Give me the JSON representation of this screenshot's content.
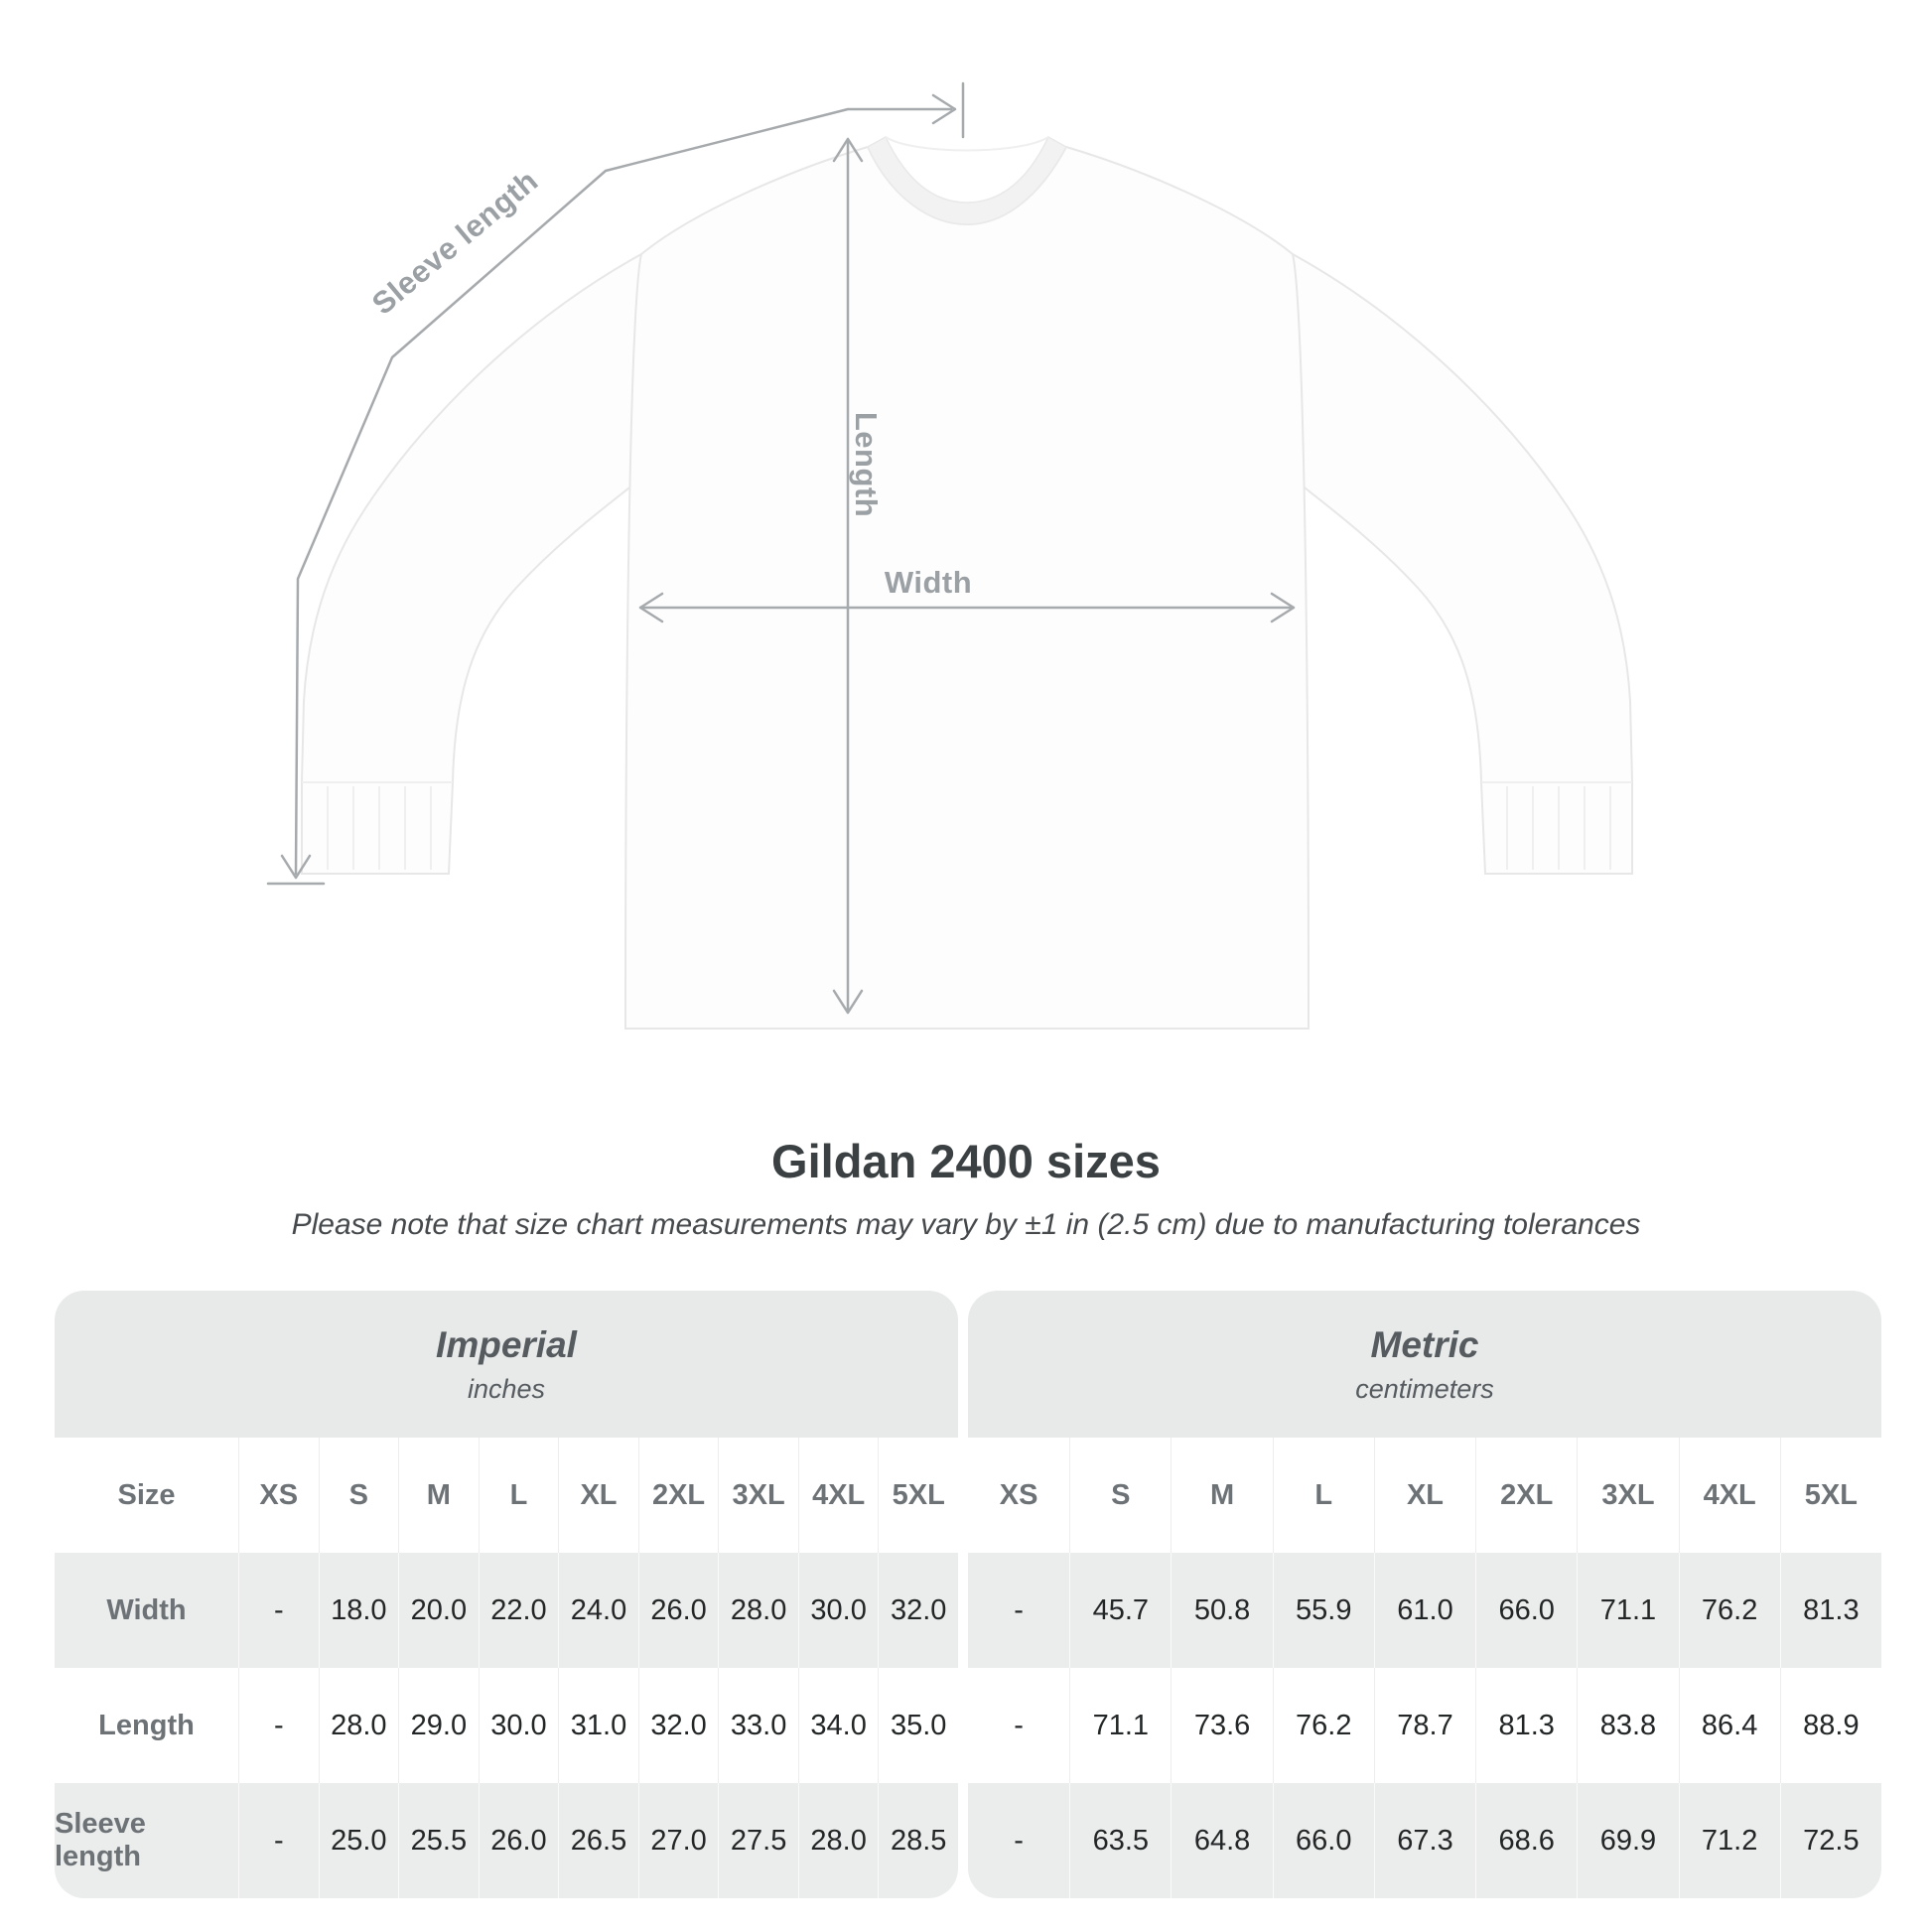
{
  "diagram": {
    "sleeve_length_label": "Sleeve length",
    "length_label": "Length",
    "width_label": "Width"
  },
  "title": "Gildan 2400 sizes",
  "subtitle": "Please note that size chart measurements may vary by ±1 in (2.5 cm) due to manufacturing tolerances",
  "table": {
    "sections": [
      {
        "title": "Imperial",
        "unit": "inches"
      },
      {
        "title": "Metric",
        "unit": "centimeters"
      }
    ],
    "size_header": "Size",
    "sizes": [
      "XS",
      "S",
      "M",
      "L",
      "XL",
      "2XL",
      "3XL",
      "4XL",
      "5XL"
    ],
    "rows": [
      {
        "label": "Width",
        "imperial": [
          "-",
          "18.0",
          "20.0",
          "22.0",
          "24.0",
          "26.0",
          "28.0",
          "30.0",
          "32.0"
        ],
        "metric": [
          "-",
          "45.7",
          "50.8",
          "55.9",
          "61.0",
          "66.0",
          "71.1",
          "76.2",
          "81.3"
        ]
      },
      {
        "label": "Length",
        "imperial": [
          "-",
          "28.0",
          "29.0",
          "30.0",
          "31.0",
          "32.0",
          "33.0",
          "34.0",
          "35.0"
        ],
        "metric": [
          "-",
          "71.1",
          "73.6",
          "76.2",
          "78.7",
          "81.3",
          "83.8",
          "86.4",
          "88.9"
        ]
      },
      {
        "label": "Sleeve length",
        "imperial": [
          "-",
          "25.0",
          "25.5",
          "26.0",
          "26.5",
          "27.0",
          "27.5",
          "28.0",
          "28.5"
        ],
        "metric": [
          "-",
          "63.5",
          "64.8",
          "66.0",
          "67.3",
          "68.6",
          "69.9",
          "71.2",
          "72.5"
        ]
      }
    ]
  },
  "chart_data": {
    "type": "table",
    "title": "Gildan 2400 sizes",
    "note": "Measurements may vary by ±1 in (2.5 cm)",
    "units": {
      "imperial": "inches",
      "metric": "centimeters"
    },
    "sizes": [
      "XS",
      "S",
      "M",
      "L",
      "XL",
      "2XL",
      "3XL",
      "4XL",
      "5XL"
    ],
    "rows": [
      {
        "label": "Width",
        "imperial": [
          null,
          18.0,
          20.0,
          22.0,
          24.0,
          26.0,
          28.0,
          30.0,
          32.0
        ],
        "metric": [
          null,
          45.7,
          50.8,
          55.9,
          61.0,
          66.0,
          71.1,
          76.2,
          81.3
        ]
      },
      {
        "label": "Length",
        "imperial": [
          null,
          28.0,
          29.0,
          30.0,
          31.0,
          32.0,
          33.0,
          34.0,
          35.0
        ],
        "metric": [
          null,
          71.1,
          73.6,
          76.2,
          78.7,
          81.3,
          83.8,
          86.4,
          88.9
        ]
      },
      {
        "label": "Sleeve length",
        "imperial": [
          null,
          25.0,
          25.5,
          26.0,
          26.5,
          27.0,
          27.5,
          28.0,
          28.5
        ],
        "metric": [
          null,
          63.5,
          64.8,
          66.0,
          67.3,
          68.6,
          69.9,
          71.2,
          72.5
        ]
      }
    ]
  }
}
